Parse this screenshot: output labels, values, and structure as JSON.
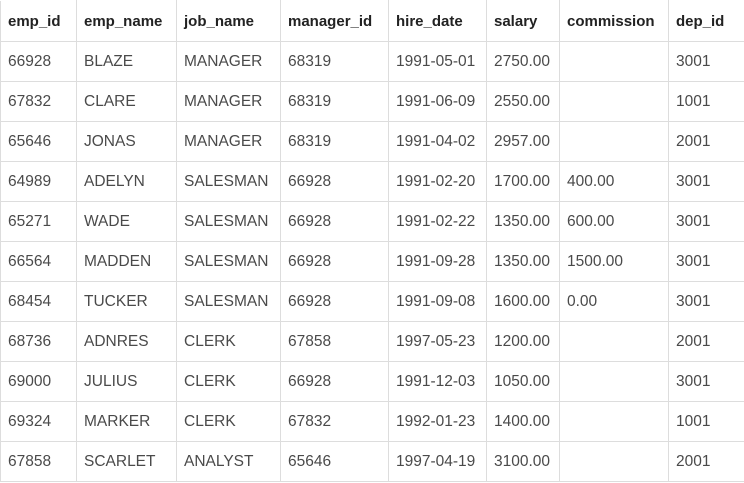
{
  "table": {
    "columns": [
      "emp_id",
      "emp_name",
      "job_name",
      "manager_id",
      "hire_date",
      "salary",
      "commission",
      "dep_id"
    ],
    "rows": [
      [
        "66928",
        "BLAZE",
        "MANAGER",
        "68319",
        "1991-05-01",
        "2750.00",
        "",
        "3001"
      ],
      [
        "67832",
        "CLARE",
        "MANAGER",
        "68319",
        "1991-06-09",
        "2550.00",
        "",
        "1001"
      ],
      [
        "65646",
        "JONAS",
        "MANAGER",
        "68319",
        "1991-04-02",
        "2957.00",
        "",
        "2001"
      ],
      [
        "64989",
        "ADELYN",
        "SALESMAN",
        "66928",
        "1991-02-20",
        "1700.00",
        "400.00",
        "3001"
      ],
      [
        "65271",
        "WADE",
        "SALESMAN",
        "66928",
        "1991-02-22",
        "1350.00",
        "600.00",
        "3001"
      ],
      [
        "66564",
        "MADDEN",
        "SALESMAN",
        "66928",
        "1991-09-28",
        "1350.00",
        "1500.00",
        "3001"
      ],
      [
        "68454",
        "TUCKER",
        "SALESMAN",
        "66928",
        "1991-09-08",
        "1600.00",
        "0.00",
        "3001"
      ],
      [
        "68736",
        "ADNRES",
        "CLERK",
        "67858",
        "1997-05-23",
        "1200.00",
        "",
        "2001"
      ],
      [
        "69000",
        "JULIUS",
        "CLERK",
        "66928",
        "1991-12-03",
        "1050.00",
        "",
        "3001"
      ],
      [
        "69324",
        "MARKER",
        "CLERK",
        "67832",
        "1992-01-23",
        "1400.00",
        "",
        "1001"
      ],
      [
        "67858",
        "SCARLET",
        "ANALYST",
        "65646",
        "1997-04-19",
        "3100.00",
        "",
        "2001"
      ]
    ]
  }
}
